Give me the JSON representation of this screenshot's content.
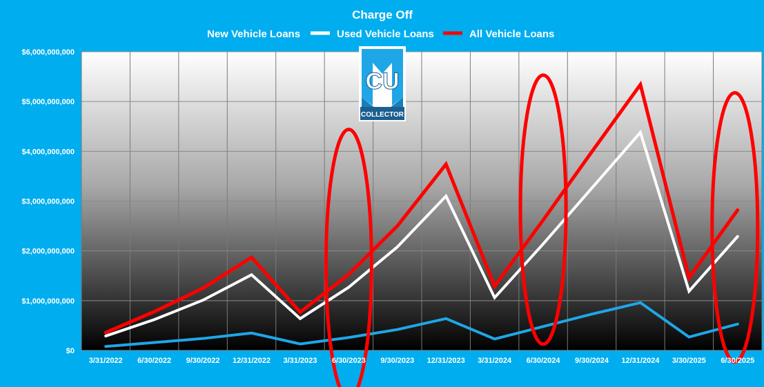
{
  "chart_data": {
    "type": "line",
    "title": "Charge Off",
    "categories": [
      "3/31/2022",
      "6/30/2022",
      "9/30/2022",
      "12/31/2022",
      "3/31/2023",
      "6/30/2023",
      "9/30/2023",
      "12/31/2023",
      "3/31/2024",
      "6/30/2024",
      "9/30/2024",
      "12/31/2024",
      "3/30/2025",
      "6/30/2025"
    ],
    "y_ticks": [
      "$0",
      "$1,000,000,000",
      "$2,000,000,000",
      "$3,000,000,000",
      "$4,000,000,000",
      "$5,000,000,000",
      "$6,000,000,000"
    ],
    "ylim": [
      0,
      6000000000
    ],
    "grid": true,
    "legend": "top",
    "series": [
      {
        "name": "New Vehicle Loans",
        "color": "#1ea6e6",
        "values": [
          80000000,
          160000000,
          240000000,
          350000000,
          130000000,
          260000000,
          420000000,
          640000000,
          230000000,
          480000000,
          730000000,
          960000000,
          270000000,
          530000000
        ]
      },
      {
        "name": "Used Vehicle Loans",
        "color": "#ffffff",
        "values": [
          290000000,
          620000000,
          1010000000,
          1520000000,
          640000000,
          1270000000,
          2080000000,
          3100000000,
          1060000000,
          2140000000,
          3260000000,
          4380000000,
          1190000000,
          2290000000
        ]
      },
      {
        "name": "All Vehicle Loans",
        "color": "#ff0000",
        "values": [
          360000000,
          780000000,
          1250000000,
          1870000000,
          770000000,
          1530000000,
          2500000000,
          3740000000,
          1290000000,
          2620000000,
          3990000000,
          5340000000,
          1460000000,
          2820000000
        ]
      }
    ],
    "highlights": [
      {
        "category": "6/30/2023",
        "color": "#ff0000"
      },
      {
        "category": "6/30/2024",
        "color": "#ff0000"
      },
      {
        "category": "6/30/2025",
        "color": "#ff0000"
      }
    ]
  },
  "logo": {
    "monogram": "CU",
    "wordmark": "COLLECTOR",
    "color": "#1ea6e6"
  }
}
